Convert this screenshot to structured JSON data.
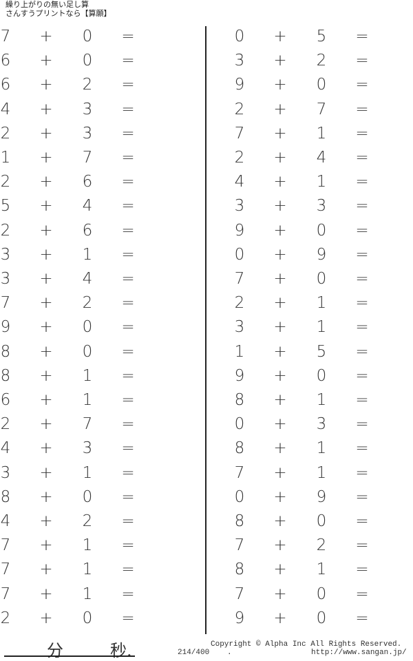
{
  "header": {
    "title": "繰り上がりの無い足し算",
    "subtitle": "さんすうプリントなら【算願】"
  },
  "operator": "+",
  "equals": "=",
  "left_problems": [
    [
      7,
      0
    ],
    [
      6,
      0
    ],
    [
      6,
      2
    ],
    [
      4,
      3
    ],
    [
      2,
      3
    ],
    [
      1,
      7
    ],
    [
      2,
      6
    ],
    [
      5,
      4
    ],
    [
      2,
      6
    ],
    [
      3,
      1
    ],
    [
      3,
      4
    ],
    [
      7,
      2
    ],
    [
      9,
      0
    ],
    [
      8,
      0
    ],
    [
      8,
      1
    ],
    [
      6,
      1
    ],
    [
      2,
      7
    ],
    [
      4,
      3
    ],
    [
      3,
      1
    ],
    [
      8,
      0
    ],
    [
      4,
      2
    ],
    [
      7,
      1
    ],
    [
      7,
      1
    ],
    [
      7,
      1
    ],
    [
      2,
      0
    ]
  ],
  "right_problems": [
    [
      0,
      5
    ],
    [
      3,
      2
    ],
    [
      9,
      0
    ],
    [
      2,
      7
    ],
    [
      7,
      1
    ],
    [
      2,
      4
    ],
    [
      4,
      1
    ],
    [
      3,
      3
    ],
    [
      9,
      0
    ],
    [
      0,
      9
    ],
    [
      7,
      0
    ],
    [
      2,
      1
    ],
    [
      3,
      1
    ],
    [
      1,
      5
    ],
    [
      9,
      0
    ],
    [
      8,
      1
    ],
    [
      0,
      3
    ],
    [
      8,
      1
    ],
    [
      7,
      1
    ],
    [
      0,
      9
    ],
    [
      8,
      0
    ],
    [
      7,
      2
    ],
    [
      8,
      1
    ],
    [
      7,
      0
    ],
    [
      9,
      0
    ]
  ],
  "footer": {
    "minutes_label": "分",
    "seconds_label": "秒.",
    "page": "214/400",
    "dot": ".",
    "copyright": "Copyright ©  Alpha Inc All Rights Reserved.",
    "url": "http://www.sangan.jp/"
  }
}
